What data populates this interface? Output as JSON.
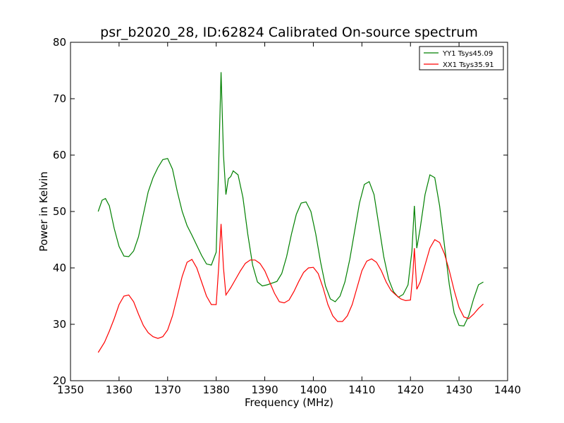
{
  "chart_data": {
    "type": "line",
    "title": "psr_b2020_28, ID:62824 Calibrated On-source spectrum",
    "xlabel": "Frequency (MHz)",
    "ylabel": "Power in Kelvin",
    "xlim": [
      1350,
      1440
    ],
    "ylim": [
      20,
      80
    ],
    "xticks": [
      "1350",
      "1360",
      "1370",
      "1380",
      "1390",
      "1400",
      "1410",
      "1420",
      "1430",
      "1440"
    ],
    "yticks": [
      "20",
      "30",
      "40",
      "50",
      "60",
      "70",
      "80"
    ],
    "grid": false,
    "legend_position": "top-right",
    "series": [
      {
        "name": "YY1 Tsys45.09",
        "color": "#008000",
        "points": [
          [
            1355.7,
            50.0
          ],
          [
            1356.5,
            52.0
          ],
          [
            1357.2,
            52.3
          ],
          [
            1358.0,
            51.0
          ],
          [
            1359.0,
            47.0
          ],
          [
            1360.0,
            43.8
          ],
          [
            1361.0,
            42.1
          ],
          [
            1362.0,
            42.0
          ],
          [
            1363.0,
            43.0
          ],
          [
            1364.0,
            45.5
          ],
          [
            1365.0,
            49.5
          ],
          [
            1366.0,
            53.5
          ],
          [
            1367.0,
            56.0
          ],
          [
            1368.0,
            57.8
          ],
          [
            1369.0,
            59.2
          ],
          [
            1370.0,
            59.4
          ],
          [
            1371.0,
            57.5
          ],
          [
            1372.0,
            53.5
          ],
          [
            1373.0,
            50.0
          ],
          [
            1374.0,
            47.5
          ],
          [
            1375.0,
            45.8
          ],
          [
            1376.0,
            44.0
          ],
          [
            1377.0,
            42.2
          ],
          [
            1378.0,
            40.7
          ],
          [
            1379.0,
            40.5
          ],
          [
            1380.0,
            42.8
          ],
          [
            1380.5,
            58.0
          ],
          [
            1381.0,
            74.7
          ],
          [
            1381.5,
            60.0
          ],
          [
            1382.0,
            53.0
          ],
          [
            1382.5,
            55.8
          ],
          [
            1383.0,
            56.2
          ],
          [
            1383.5,
            57.2
          ],
          [
            1384.5,
            56.5
          ],
          [
            1385.5,
            52.5
          ],
          [
            1386.5,
            46.0
          ],
          [
            1387.5,
            40.5
          ],
          [
            1388.5,
            37.5
          ],
          [
            1389.5,
            36.8
          ],
          [
            1390.5,
            37.0
          ],
          [
            1391.5,
            37.3
          ],
          [
            1392.5,
            37.6
          ],
          [
            1393.5,
            39.0
          ],
          [
            1394.5,
            42.0
          ],
          [
            1395.5,
            46.0
          ],
          [
            1396.5,
            49.5
          ],
          [
            1397.5,
            51.5
          ],
          [
            1398.5,
            51.7
          ],
          [
            1399.5,
            50.0
          ],
          [
            1400.5,
            46.0
          ],
          [
            1401.5,
            41.0
          ],
          [
            1402.5,
            36.8
          ],
          [
            1403.5,
            34.5
          ],
          [
            1404.5,
            34.0
          ],
          [
            1405.5,
            35.0
          ],
          [
            1406.5,
            37.5
          ],
          [
            1407.5,
            41.5
          ],
          [
            1408.5,
            46.5
          ],
          [
            1409.5,
            51.5
          ],
          [
            1410.5,
            54.8
          ],
          [
            1411.5,
            55.3
          ],
          [
            1412.5,
            53.0
          ],
          [
            1413.5,
            47.5
          ],
          [
            1414.5,
            42.0
          ],
          [
            1415.5,
            38.0
          ],
          [
            1416.5,
            35.8
          ],
          [
            1417.5,
            34.8
          ],
          [
            1418.5,
            35.3
          ],
          [
            1419.5,
            37.0
          ],
          [
            1420.3,
            43.0
          ],
          [
            1420.8,
            51.0
          ],
          [
            1421.3,
            43.5
          ],
          [
            1422.0,
            47.0
          ],
          [
            1423.0,
            53.0
          ],
          [
            1424.0,
            56.5
          ],
          [
            1425.0,
            56.0
          ],
          [
            1426.0,
            51.0
          ],
          [
            1427.0,
            44.0
          ],
          [
            1428.0,
            37.0
          ],
          [
            1429.0,
            32.0
          ],
          [
            1430.0,
            29.8
          ],
          [
            1431.0,
            29.7
          ],
          [
            1432.0,
            31.5
          ],
          [
            1433.0,
            34.5
          ],
          [
            1434.0,
            37.0
          ],
          [
            1435.0,
            37.5
          ]
        ]
      },
      {
        "name": "XX1 Tsys35.91",
        "color": "#ff0000",
        "points": [
          [
            1355.7,
            25.0
          ],
          [
            1357.0,
            26.8
          ],
          [
            1358.0,
            28.8
          ],
          [
            1359.0,
            31.0
          ],
          [
            1360.0,
            33.5
          ],
          [
            1361.0,
            35.0
          ],
          [
            1362.0,
            35.2
          ],
          [
            1363.0,
            34.0
          ],
          [
            1364.0,
            31.8
          ],
          [
            1365.0,
            29.8
          ],
          [
            1366.0,
            28.5
          ],
          [
            1367.0,
            27.8
          ],
          [
            1368.0,
            27.5
          ],
          [
            1369.0,
            27.8
          ],
          [
            1370.0,
            29.0
          ],
          [
            1371.0,
            31.5
          ],
          [
            1372.0,
            35.0
          ],
          [
            1373.0,
            38.5
          ],
          [
            1374.0,
            41.0
          ],
          [
            1375.0,
            41.5
          ],
          [
            1376.0,
            40.0
          ],
          [
            1377.0,
            37.5
          ],
          [
            1378.0,
            35.0
          ],
          [
            1379.0,
            33.5
          ],
          [
            1380.0,
            33.5
          ],
          [
            1380.5,
            40.0
          ],
          [
            1381.0,
            47.8
          ],
          [
            1381.5,
            40.0
          ],
          [
            1382.0,
            35.2
          ],
          [
            1383.0,
            36.5
          ],
          [
            1384.0,
            38.0
          ],
          [
            1385.0,
            39.5
          ],
          [
            1386.0,
            40.8
          ],
          [
            1387.0,
            41.4
          ],
          [
            1388.0,
            41.4
          ],
          [
            1389.0,
            40.8
          ],
          [
            1390.0,
            39.5
          ],
          [
            1391.0,
            37.5
          ],
          [
            1392.0,
            35.5
          ],
          [
            1393.0,
            34.0
          ],
          [
            1394.0,
            33.8
          ],
          [
            1395.0,
            34.3
          ],
          [
            1396.0,
            35.8
          ],
          [
            1397.0,
            37.6
          ],
          [
            1398.0,
            39.2
          ],
          [
            1399.0,
            40.0
          ],
          [
            1400.0,
            40.1
          ],
          [
            1401.0,
            39.0
          ],
          [
            1402.0,
            36.5
          ],
          [
            1403.0,
            33.5
          ],
          [
            1404.0,
            31.5
          ],
          [
            1405.0,
            30.5
          ],
          [
            1406.0,
            30.5
          ],
          [
            1407.0,
            31.5
          ],
          [
            1408.0,
            33.5
          ],
          [
            1409.0,
            36.5
          ],
          [
            1410.0,
            39.5
          ],
          [
            1411.0,
            41.2
          ],
          [
            1412.0,
            41.6
          ],
          [
            1413.0,
            41.0
          ],
          [
            1414.0,
            39.5
          ],
          [
            1415.0,
            37.5
          ],
          [
            1416.0,
            36.0
          ],
          [
            1417.0,
            35.2
          ],
          [
            1418.0,
            34.5
          ],
          [
            1419.0,
            34.2
          ],
          [
            1420.0,
            34.3
          ],
          [
            1420.5,
            39.0
          ],
          [
            1420.8,
            43.5
          ],
          [
            1421.3,
            36.2
          ],
          [
            1422.0,
            37.5
          ],
          [
            1423.0,
            40.5
          ],
          [
            1424.0,
            43.5
          ],
          [
            1425.0,
            45.0
          ],
          [
            1426.0,
            44.5
          ],
          [
            1427.0,
            42.5
          ],
          [
            1428.0,
            39.5
          ],
          [
            1429.0,
            36.0
          ],
          [
            1430.0,
            33.0
          ],
          [
            1431.0,
            31.3
          ],
          [
            1432.0,
            31.0
          ],
          [
            1433.0,
            31.8
          ],
          [
            1434.0,
            32.8
          ],
          [
            1435.0,
            33.6
          ]
        ]
      }
    ]
  }
}
